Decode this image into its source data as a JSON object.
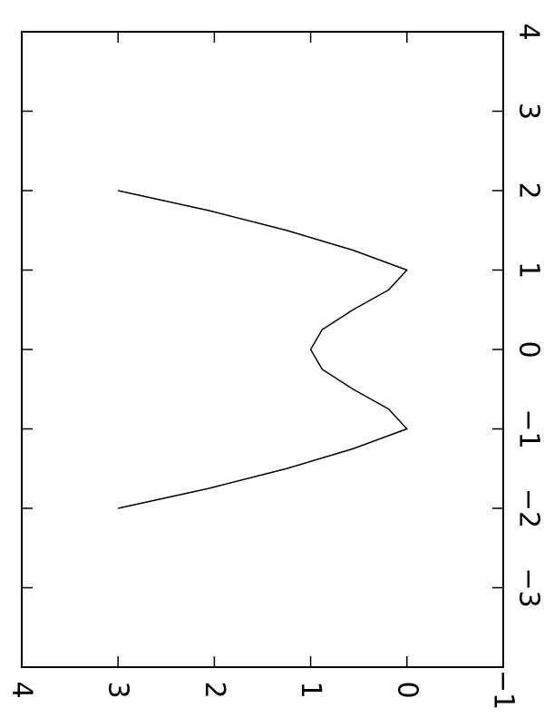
{
  "chart_data": {
    "type": "line",
    "orientation": "rotated-90",
    "title": "",
    "xlabel": "",
    "ylabel": "",
    "xlim": [
      -4,
      4
    ],
    "ylim": [
      -1,
      4
    ],
    "xticks": [
      -3,
      -2,
      -1,
      0,
      1,
      2,
      3,
      4
    ],
    "yticks": [
      -1,
      0,
      1,
      2,
      3,
      4
    ],
    "xtick_labels": [
      "−3",
      "−2",
      "−1",
      "0",
      "1",
      "2",
      "3",
      "4"
    ],
    "ytick_labels": [
      "−1",
      "0",
      "1",
      "2",
      "3",
      "4"
    ],
    "grid": false,
    "line_color": "#000000",
    "series": [
      {
        "x": [
          -2,
          -1.75,
          -1.5,
          -1.25,
          -1,
          -0.75,
          -0.5,
          -0.25,
          0,
          0.25,
          0.5,
          0.75,
          1,
          1.25,
          1.5,
          1.75,
          2
        ],
        "y": [
          3,
          2.06,
          1.25,
          0.56,
          0,
          0.19,
          0.56,
          0.88,
          1,
          0.88,
          0.56,
          0.19,
          0,
          0.56,
          1.25,
          2.06,
          3
        ]
      }
    ]
  }
}
